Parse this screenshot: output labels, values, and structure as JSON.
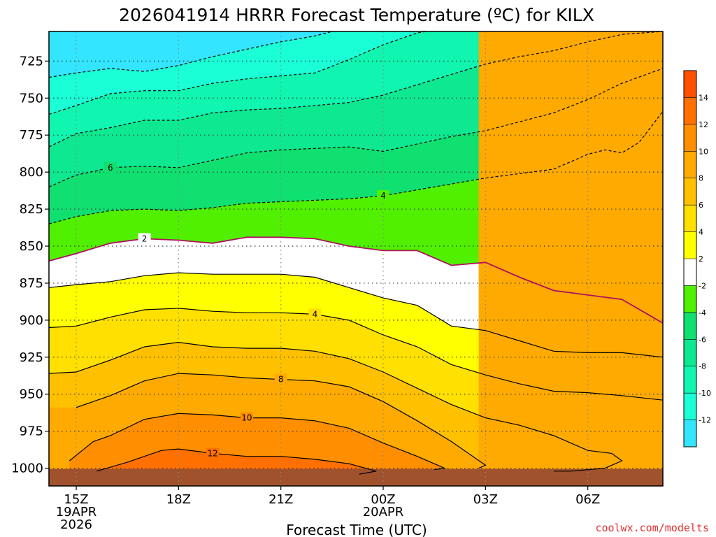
{
  "chart_data": {
    "type": "contour",
    "title": "2026041914 HRRR Forecast Temperature (ºC) for KILX",
    "xlabel": "Forecast Time (UTC)",
    "credit": "coolwx.com/modelts",
    "y_axis": {
      "label": "",
      "inverted": true,
      "range": [
        1012,
        705
      ],
      "ticks": [
        1000,
        975,
        950,
        925,
        900,
        875,
        850,
        825,
        800,
        775,
        750,
        725
      ]
    },
    "x_axis": {
      "range": [
        14.2,
        32.2
      ],
      "ticks": [
        {
          "x": 15,
          "label": "15Z",
          "sub": [
            "19APR",
            "2026"
          ]
        },
        {
          "x": 18,
          "label": "18Z",
          "sub": []
        },
        {
          "x": 21,
          "label": "21Z",
          "sub": []
        },
        {
          "x": 24,
          "label": "00Z",
          "sub": [
            "20APR"
          ]
        },
        {
          "x": 27,
          "label": "03Z",
          "sub": []
        },
        {
          "x": 30,
          "label": "06Z",
          "sub": []
        }
      ]
    },
    "grid": true,
    "surface_pressure_approx": 1000,
    "contour_interval": 2,
    "colorbar": {
      "levels": [
        -14,
        -12,
        -10,
        -8,
        -6,
        -4,
        -2,
        2,
        4,
        6,
        8,
        10,
        12,
        14,
        16
      ],
      "tick_labels": [
        "-12",
        "-10",
        "-8",
        "-6",
        "-4",
        "-2",
        "2",
        "4",
        "6",
        "8",
        "10",
        "12",
        "14"
      ],
      "colors": [
        "#33e5ff",
        "#1affd5",
        "#10f5b0",
        "#0ee890",
        "#10e070",
        "#50f000",
        "#ffffff",
        "#ffff00",
        "#ffe000",
        "#ffc000",
        "#ffaa00",
        "#ff8e00",
        "#ff7000",
        "#ff5000"
      ]
    },
    "isotherms": [
      {
        "value": -12,
        "label": "",
        "points": [
          [
            14.2,
            736
          ],
          [
            15,
            733
          ],
          [
            16,
            730
          ],
          [
            17,
            732
          ],
          [
            18,
            728
          ],
          [
            19,
            722
          ],
          [
            20,
            717
          ],
          [
            21,
            712
          ],
          [
            22,
            708
          ],
          [
            23,
            702
          ]
        ]
      },
      {
        "value": -10,
        "label": "",
        "points": [
          [
            14.2,
            761
          ],
          [
            15,
            755
          ],
          [
            16,
            747
          ],
          [
            17,
            745
          ],
          [
            18,
            745
          ],
          [
            19,
            740
          ],
          [
            20,
            737
          ],
          [
            21,
            735
          ],
          [
            22,
            733
          ],
          [
            23,
            724
          ],
          [
            24,
            714
          ],
          [
            25,
            706
          ],
          [
            26,
            702
          ]
        ]
      },
      {
        "value": -8,
        "label": "",
        "points": [
          [
            14.2,
            783
          ],
          [
            15,
            774
          ],
          [
            16,
            770
          ],
          [
            17,
            765
          ],
          [
            18,
            765
          ],
          [
            19,
            760
          ],
          [
            20,
            758
          ],
          [
            21,
            757
          ],
          [
            22,
            755
          ],
          [
            23,
            753
          ],
          [
            24,
            748
          ],
          [
            25,
            741
          ],
          [
            26,
            734
          ],
          [
            27,
            727
          ],
          [
            28,
            722
          ],
          [
            29,
            718
          ],
          [
            30,
            712
          ],
          [
            31,
            707
          ],
          [
            32.2,
            705
          ]
        ]
      },
      {
        "value": -6,
        "label": "6",
        "points": [
          [
            14.2,
            810
          ],
          [
            15,
            802
          ],
          [
            16,
            797
          ],
          [
            17,
            796
          ],
          [
            18,
            797
          ],
          [
            19,
            792
          ],
          [
            20,
            787
          ],
          [
            21,
            785
          ],
          [
            22,
            784
          ],
          [
            23,
            783
          ],
          [
            24,
            786
          ],
          [
            25,
            781
          ],
          [
            26,
            776
          ],
          [
            27,
            772
          ],
          [
            28,
            766
          ],
          [
            29,
            760
          ],
          [
            30,
            751
          ],
          [
            31,
            740
          ],
          [
            32.2,
            730
          ]
        ]
      },
      {
        "value": -4,
        "label": "4",
        "points": [
          [
            14.2,
            835
          ],
          [
            15,
            830
          ],
          [
            16,
            826
          ],
          [
            17,
            825
          ],
          [
            18,
            826
          ],
          [
            19,
            824
          ],
          [
            20,
            821
          ],
          [
            21,
            820
          ],
          [
            22,
            819
          ],
          [
            23,
            818
          ],
          [
            24,
            816
          ],
          [
            25,
            812
          ],
          [
            26,
            808
          ],
          [
            27,
            804
          ],
          [
            28,
            801
          ],
          [
            29,
            798
          ],
          [
            30,
            788
          ],
          [
            30.5,
            785
          ],
          [
            31,
            787
          ],
          [
            31.5,
            780
          ],
          [
            32.2,
            759
          ]
        ]
      },
      {
        "value": -2,
        "label": "2",
        "points": [
          [
            14.2,
            860
          ],
          [
            15,
            855
          ],
          [
            16,
            848
          ],
          [
            17,
            845
          ],
          [
            18,
            846
          ],
          [
            19,
            848
          ],
          [
            20,
            844
          ],
          [
            21,
            844
          ],
          [
            22,
            845
          ],
          [
            23,
            850
          ],
          [
            24,
            853
          ],
          [
            25,
            853
          ],
          [
            26,
            863
          ],
          [
            27,
            861
          ],
          [
            28,
            871
          ],
          [
            29,
            880
          ],
          [
            30,
            883
          ],
          [
            31,
            886
          ],
          [
            32.2,
            902
          ]
        ]
      },
      {
        "value": 2,
        "label": "",
        "points": [
          [
            14.2,
            878
          ],
          [
            15,
            876
          ],
          [
            16,
            874
          ],
          [
            17,
            870
          ],
          [
            18,
            868
          ],
          [
            19,
            869
          ],
          [
            20,
            869
          ],
          [
            21,
            869
          ],
          [
            22,
            871
          ],
          [
            23,
            878
          ],
          [
            24,
            885
          ],
          [
            25,
            890
          ],
          [
            26,
            904
          ],
          [
            27,
            907
          ],
          [
            28,
            914
          ],
          [
            29,
            921
          ],
          [
            30,
            922
          ],
          [
            31,
            922
          ],
          [
            32.2,
            925
          ]
        ]
      },
      {
        "value": 4,
        "label": "4",
        "points": [
          [
            14.2,
            905
          ],
          [
            15,
            904
          ],
          [
            16,
            898
          ],
          [
            17,
            893
          ],
          [
            18,
            892
          ],
          [
            19,
            894
          ],
          [
            20,
            895
          ],
          [
            21,
            895
          ],
          [
            22,
            896
          ],
          [
            23,
            900
          ],
          [
            24,
            910
          ],
          [
            25,
            918
          ],
          [
            26,
            930
          ],
          [
            27,
            937
          ],
          [
            28,
            943
          ],
          [
            29,
            948
          ],
          [
            30,
            949
          ],
          [
            31,
            951
          ],
          [
            32.2,
            954
          ]
        ]
      },
      {
        "value": 6,
        "label": "",
        "points": [
          [
            14.2,
            936
          ],
          [
            15,
            935
          ],
          [
            16,
            927
          ],
          [
            17,
            918
          ],
          [
            18,
            915
          ],
          [
            19,
            918
          ],
          [
            20,
            919
          ],
          [
            21,
            919
          ],
          [
            22,
            921
          ],
          [
            23,
            926
          ],
          [
            24,
            935
          ],
          [
            25,
            946
          ],
          [
            26,
            957
          ],
          [
            27,
            966
          ],
          [
            28,
            971
          ],
          [
            29,
            978
          ],
          [
            30,
            988
          ],
          [
            30.7,
            990
          ],
          [
            31,
            995
          ],
          [
            30.5,
            1000
          ],
          [
            29.5,
            1002
          ],
          [
            29,
            1002
          ]
        ]
      },
      {
        "value": 8,
        "label": "8",
        "points": [
          [
            15,
            959
          ],
          [
            16,
            951
          ],
          [
            17,
            941
          ],
          [
            18,
            936
          ],
          [
            19,
            937
          ],
          [
            20,
            939
          ],
          [
            21,
            940
          ],
          [
            22,
            941
          ],
          [
            23,
            945
          ],
          [
            24,
            955
          ],
          [
            25,
            968
          ],
          [
            26,
            982
          ],
          [
            27,
            998
          ],
          [
            26.8,
            1000
          ]
        ]
      },
      {
        "value": 10,
        "label": "10",
        "points": [
          [
            14.8,
            995
          ],
          [
            15.5,
            982
          ],
          [
            16,
            978
          ],
          [
            17,
            967
          ],
          [
            18,
            963
          ],
          [
            19,
            964
          ],
          [
            20,
            966
          ],
          [
            21,
            966
          ],
          [
            22,
            968
          ],
          [
            23,
            973
          ],
          [
            24,
            983
          ],
          [
            25,
            992
          ],
          [
            25.8,
            1000
          ],
          [
            25.5,
            1001
          ]
        ]
      },
      {
        "value": 12,
        "label": "12",
        "points": [
          [
            15.6,
            1002
          ],
          [
            16.5,
            996
          ],
          [
            17.5,
            988
          ],
          [
            18,
            987
          ],
          [
            19,
            990
          ],
          [
            20,
            992
          ],
          [
            21,
            992
          ],
          [
            22,
            994
          ],
          [
            23,
            997
          ],
          [
            23.8,
            1002
          ],
          [
            23.3,
            1004
          ]
        ]
      }
    ]
  }
}
